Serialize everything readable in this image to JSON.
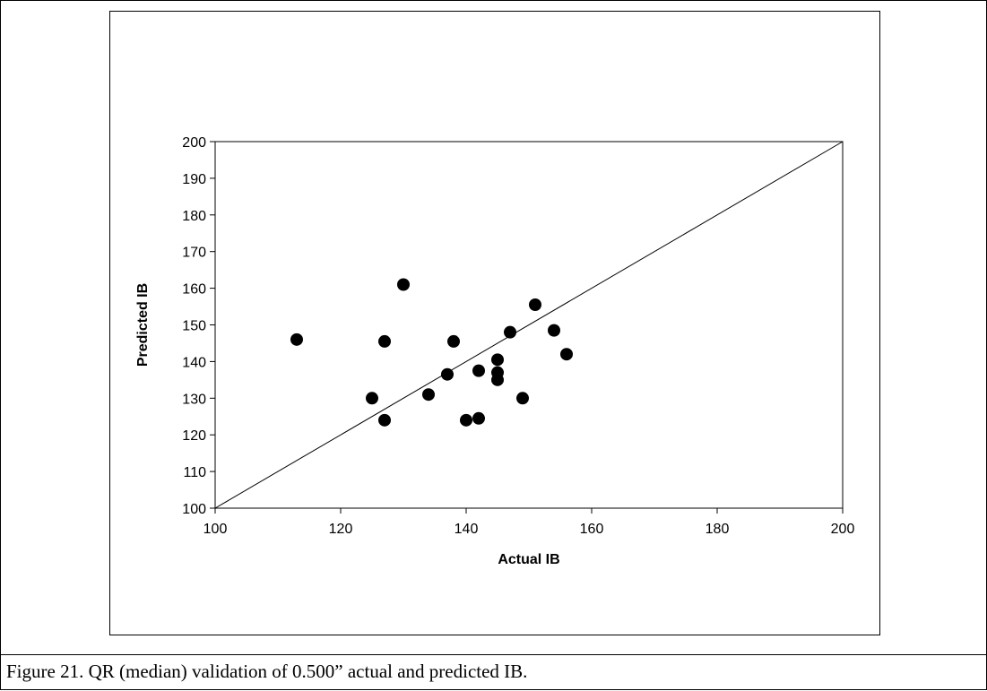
{
  "caption": "Figure 21. QR (median) validation of 0.500” actual and predicted IB.",
  "chart_data": {
    "type": "scatter",
    "title": "",
    "xlabel": "Actual IB",
    "ylabel": "Predicted IB",
    "xlim": [
      100,
      200
    ],
    "ylim": [
      100,
      200
    ],
    "xticks": [
      100,
      120,
      140,
      160,
      180,
      200
    ],
    "yticks": [
      100,
      110,
      120,
      130,
      140,
      150,
      160,
      170,
      180,
      190,
      200
    ],
    "grid": false,
    "legend": "none",
    "reference_line": {
      "x": [
        100,
        200
      ],
      "y": [
        100,
        200
      ]
    },
    "marker_color": "#000000",
    "points": [
      {
        "x": 113,
        "y": 146
      },
      {
        "x": 125,
        "y": 130
      },
      {
        "x": 127,
        "y": 145.5
      },
      {
        "x": 127,
        "y": 124
      },
      {
        "x": 130,
        "y": 161
      },
      {
        "x": 134,
        "y": 131
      },
      {
        "x": 137,
        "y": 136.5
      },
      {
        "x": 138,
        "y": 145.5
      },
      {
        "x": 140,
        "y": 124
      },
      {
        "x": 142,
        "y": 137.5
      },
      {
        "x": 142,
        "y": 124.5
      },
      {
        "x": 145,
        "y": 140.5
      },
      {
        "x": 145,
        "y": 137
      },
      {
        "x": 145,
        "y": 135
      },
      {
        "x": 147,
        "y": 148
      },
      {
        "x": 149,
        "y": 130
      },
      {
        "x": 151,
        "y": 155.5
      },
      {
        "x": 154,
        "y": 148.5
      },
      {
        "x": 156,
        "y": 142
      }
    ]
  }
}
